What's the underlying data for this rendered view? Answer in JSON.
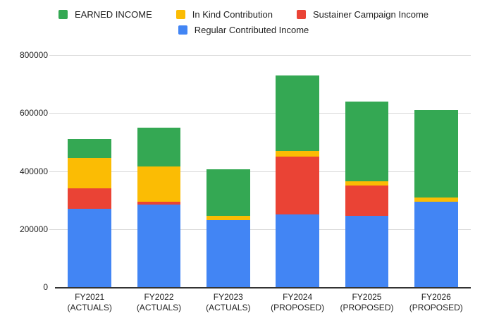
{
  "chart_data": {
    "type": "bar",
    "stacked": true,
    "title": "",
    "categories": [
      "FY2021\n(ACTUALS)",
      "FY2022\n(ACTUALS)",
      "FY2023\n(ACTUALS)",
      "FY2024\n(PROPOSED)",
      "FY2025\n(PROPOSED)",
      "FY2026\n(PROPOSED)"
    ],
    "series": [
      {
        "name": "Regular Contributed Income",
        "color": "#4285F4",
        "values": [
          270000,
          285000,
          230000,
          250000,
          245000,
          295000
        ]
      },
      {
        "name": "Sustainer Campaign Income",
        "color": "#EA4335",
        "values": [
          70000,
          10000,
          0,
          200000,
          105000,
          0
        ]
      },
      {
        "name": "In Kind Contribution",
        "color": "#FBBC04",
        "values": [
          105000,
          120000,
          15000,
          20000,
          15000,
          15000
        ]
      },
      {
        "name": "EARNED INCOME",
        "color": "#34A853",
        "values": [
          65000,
          135000,
          160000,
          260000,
          275000,
          300000
        ]
      }
    ],
    "stack_order": "bottom-to-top",
    "totals": [
      510000,
      550000,
      405000,
      730000,
      640000,
      610000
    ],
    "legend_position": "top",
    "legend_order": [
      "EARNED INCOME",
      "In Kind Contribution",
      "Sustainer Campaign Income",
      "Regular Contributed Income"
    ],
    "ylim": [
      0,
      800000
    ],
    "yticks": [
      0,
      200000,
      400000,
      600000,
      800000
    ],
    "grid": true,
    "colors": {
      "background": "#ffffff",
      "gridline": "#d9d9d9",
      "axis_line": "#333333",
      "text": "#222222"
    }
  }
}
